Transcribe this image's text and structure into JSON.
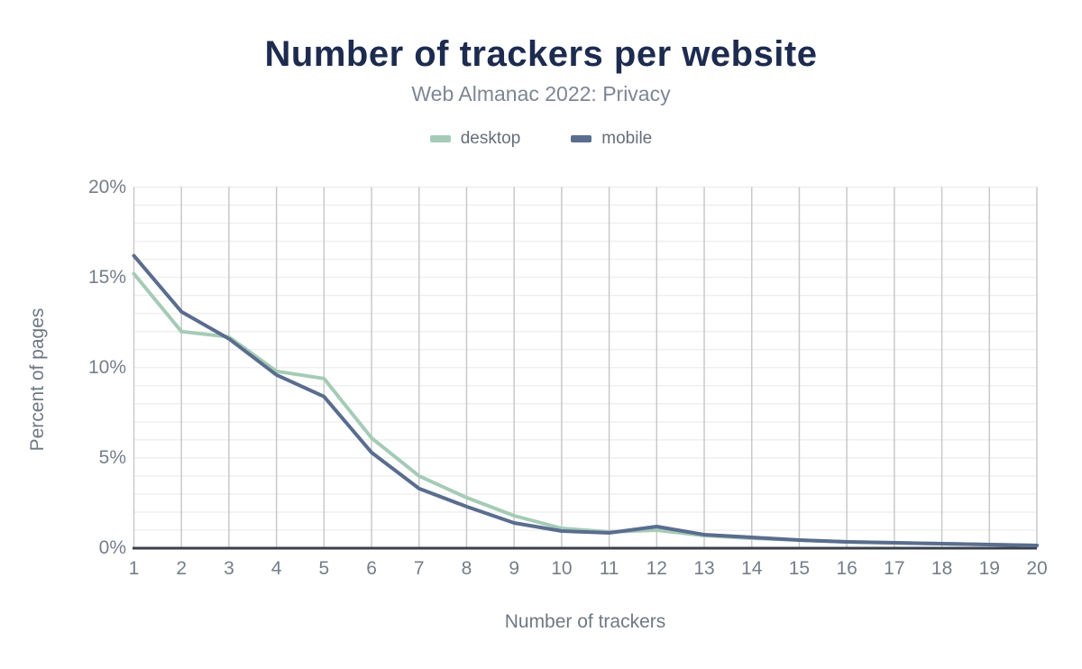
{
  "header": {
    "title": "Number of trackers per website",
    "subtitle": "Web Almanac 2022: Privacy"
  },
  "legend": {
    "items": [
      {
        "label": "desktop",
        "color": "#a5cbb7"
      },
      {
        "label": "mobile",
        "color": "#5a6d8e"
      }
    ]
  },
  "axes": {
    "y_title": "Percent of pages",
    "x_title": "Number of trackers",
    "y_tick_labels": [
      "0%",
      "5%",
      "10%",
      "15%",
      "20%"
    ],
    "y_tick_values": [
      0,
      5,
      10,
      15,
      20
    ],
    "x_tick_labels": [
      "1",
      "2",
      "3",
      "4",
      "5",
      "6",
      "7",
      "8",
      "9",
      "10",
      "11",
      "12",
      "13",
      "14",
      "15",
      "16",
      "17",
      "18",
      "19",
      "20"
    ]
  },
  "chart_data": {
    "type": "line",
    "title": "Number of trackers per website",
    "subtitle": "Web Almanac 2022: Privacy",
    "xlabel": "Number of trackers",
    "ylabel": "Percent of pages",
    "x": [
      1,
      2,
      3,
      4,
      5,
      6,
      7,
      8,
      9,
      10,
      11,
      12,
      13,
      14,
      15,
      16,
      17,
      18,
      19,
      20
    ],
    "xlim": [
      1,
      20
    ],
    "ylim": [
      0,
      20
    ],
    "y_unit": "%",
    "y_major_tick_interval": 5,
    "y_minor_gridline_interval": 1,
    "grid": {
      "vertical": true,
      "horizontal": true
    },
    "legend_position": "top",
    "series": [
      {
        "name": "desktop",
        "color": "#a5cbb7",
        "values": [
          15.2,
          12.0,
          11.7,
          9.8,
          9.4,
          6.1,
          4.0,
          2.8,
          1.8,
          1.1,
          0.9,
          1.0,
          0.7,
          0.55,
          0.45,
          0.35,
          0.3,
          0.25,
          0.2,
          0.15
        ]
      },
      {
        "name": "mobile",
        "color": "#5a6d8e",
        "values": [
          16.2,
          13.1,
          11.6,
          9.6,
          8.4,
          5.3,
          3.3,
          2.3,
          1.4,
          0.95,
          0.85,
          1.2,
          0.75,
          0.6,
          0.45,
          0.35,
          0.3,
          0.25,
          0.2,
          0.15
        ]
      }
    ]
  },
  "colors": {
    "title": "#1d2b4f",
    "subtitle": "#7d8694",
    "tick_text": "#757e89",
    "axis_title_text": "#6f7883",
    "vertical_grid": "#c9c9c9",
    "horizontal_grid": "#efefef",
    "baseline_axis": "#3a414d",
    "background": "#ffffff"
  }
}
